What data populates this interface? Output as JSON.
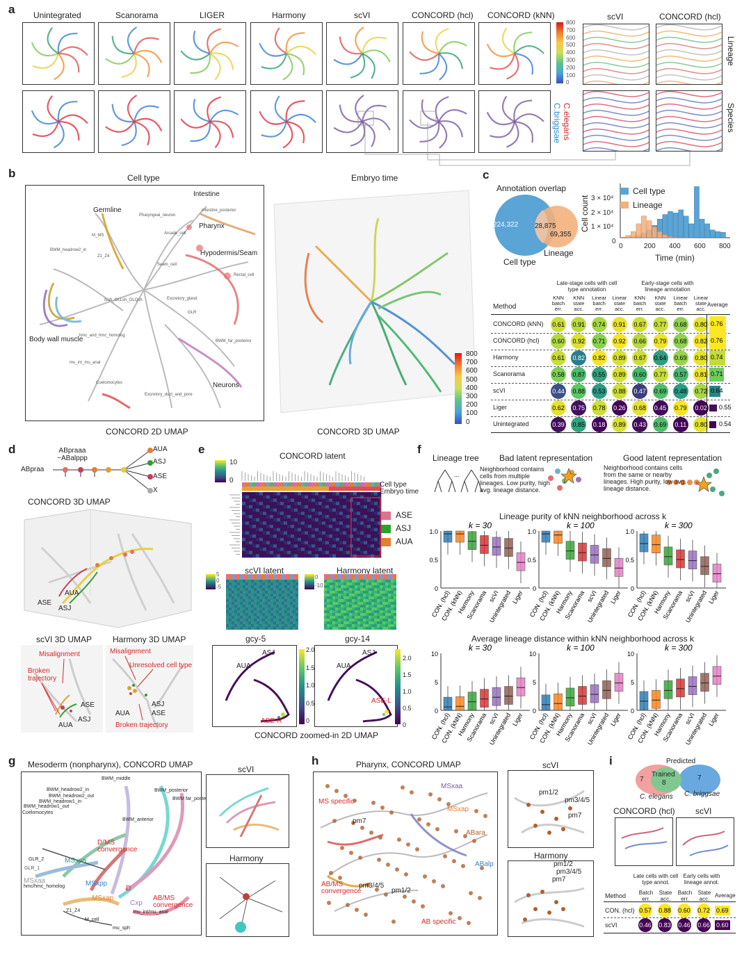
{
  "panels": [
    "a",
    "b",
    "c",
    "d",
    "e",
    "f",
    "g",
    "h",
    "i"
  ],
  "a": {
    "methods": [
      "Unintegrated",
      "Scanorama",
      "LIGER",
      "Harmony",
      "scVI",
      "CONCORD (hcl)",
      "CONCORD (kNN)"
    ],
    "colorbar_ticks": [
      "800",
      "700",
      "600",
      "500",
      "400",
      "300",
      "200",
      "100",
      "0"
    ],
    "zoom_titles": [
      "scVI",
      "CONCORD (hcl)"
    ],
    "row_labels": [
      "Lineage",
      "Species"
    ],
    "species": [
      "C.elegans",
      "C.briggsae"
    ]
  },
  "b": {
    "title_left": "Cell type",
    "title_right": "Embryo time",
    "caption_left": "CONCORD 2D UMAP",
    "caption_right": "CONCORD 3D UMAP",
    "cell_types": [
      "Intestine",
      "Germline",
      "Pharynx",
      "Hypodermis/Seam",
      "Body wall muscle",
      "Neurons"
    ],
    "tiny_labels": [
      "M_MS",
      "BWM_headrow2_in",
      "Z1_Z4",
      "Seam_cell",
      "Coelomocytes",
      "Excretory_duct_and_pore",
      "Intestine_posterior",
      "Pharyngeal_neuron",
      "hmc_and_hmc_homolog",
      "mu_int_mu_anal",
      "ILsh_OLLsh_OLQsh",
      "Excretory_gland",
      "GLR",
      "Arcade_cell",
      "BWM_far_posterior",
      "Rectal_cell"
    ],
    "colorbar_ticks": [
      "800",
      "700",
      "600",
      "500",
      "400",
      "300",
      "200",
      "100",
      "0"
    ]
  },
  "c": {
    "venn_title": "Annotation overlap",
    "venn_left_label": "Cell type",
    "venn_right_label": "Lineage",
    "venn_values": [
      "224,322",
      "28,875",
      "69,355"
    ],
    "hist_legend": [
      "Cell type",
      "Lineage"
    ],
    "hist_ylabel": "Cell count",
    "hist_xlabel": "Time (min)",
    "hist_yticks": [
      "3 × 10⁴",
      "2 × 10⁴",
      "1 × 10⁴",
      "0"
    ],
    "hist_xticks": [
      "0",
      "200",
      "400",
      "600",
      "800"
    ],
    "hist_celltype": [
      200,
      500,
      800,
      1500,
      3000,
      5000,
      8000,
      12000,
      15000,
      17000,
      16000,
      18000,
      14000,
      9000,
      33000,
      12000,
      9000,
      5000,
      4000,
      3500
    ],
    "hist_lineage": [
      300,
      1500,
      4000,
      9000,
      14000,
      11000,
      7000,
      4000,
      2000,
      800,
      400,
      200,
      100,
      50,
      0,
      0,
      0,
      0,
      0,
      0
    ],
    "table_group1": "Late-stage cells with cell type annotation",
    "table_group2": "Early-stage cells with lineage annotation",
    "table_cols": [
      "KNN batch err.",
      "KNN state acc.",
      "Linear batch err.",
      "Linear state acc.",
      "KNN batch err.",
      "KNN state acc.",
      "Linear batch err.",
      "Linear state acc."
    ],
    "method_header": "Method",
    "average_header": "Average",
    "rows": [
      {
        "method": "CONCORD (kNN)",
        "vals": [
          "0.61",
          "0.91",
          "0.74",
          "0.91",
          "0.67",
          "0.77",
          "0.68",
          "0.80"
        ],
        "avg": "0.76"
      },
      {
        "method": "CONCORD (hcl)",
        "vals": [
          "0.60",
          "0.92",
          "0.71",
          "0.92",
          "0.66",
          "0.79",
          "0.68",
          "0.82"
        ],
        "avg": "0.76"
      },
      {
        "method": "Harmony",
        "vals": [
          "0.61",
          "0.82",
          "0.82",
          "0.89",
          "0.67",
          "0.64",
          "0.69",
          "0.80"
        ],
        "avg": "0.74"
      },
      {
        "method": "Scanorama",
        "vals": [
          "0.58",
          "0.87",
          "0.55",
          "0.89",
          "0.60",
          "0.77",
          "0.57",
          "0.81"
        ],
        "avg": "0.71"
      },
      {
        "method": "scVI",
        "vals": [
          "0.44",
          "0.88",
          "0.53",
          "0.88",
          "0.47",
          "0.69",
          "0.48",
          "0.72"
        ],
        "avg": "0.64"
      },
      {
        "method": "Liger",
        "vals": [
          "0.62",
          "0.75",
          "0.78",
          "0.26",
          "0.68",
          "0.45",
          "0.79",
          "0.02"
        ],
        "avg": "0.55"
      },
      {
        "method": "Unintegrated",
        "vals": [
          "0.39",
          "0.85",
          "0.18",
          "0.89",
          "0.43",
          "0.69",
          "0.11",
          "0.80"
        ],
        "avg": "0.54"
      }
    ]
  },
  "d": {
    "lineage_root": "ABpraa",
    "lineage_sub": "ABpraaa ~ABalppp",
    "lineage_ends": [
      "AUA",
      "ASJ",
      "ASE",
      "X"
    ],
    "title_3d": "CONCORD 3D UMAP",
    "labels_3d": [
      "AUA",
      "ASE",
      "ASJ"
    ],
    "scvi_title": "scVI 3D UMAP",
    "harmony_title": "Harmony 3D UMAP",
    "scvi_notes": [
      "Misalignment",
      "Broken trajectory"
    ],
    "harmony_notes": [
      "Misalignment",
      "Unresolved cell type",
      "Broken trajectory"
    ],
    "small_labels": [
      "ASE",
      "AUA",
      "ASJ"
    ]
  },
  "e": {
    "concord_title": "CONCORD latent",
    "bar_labels": [
      "Cell type",
      "Embryo time"
    ],
    "legend": [
      "ASE",
      "ASJ",
      "AUA"
    ],
    "cbar_ticks": [
      "10",
      "0"
    ],
    "scvi_title": "scVI latent",
    "scvi_ticks": [
      "5",
      "0",
      "-5"
    ],
    "harmony_title": "Harmony latent",
    "harmony_ticks": [
      "0",
      "-10"
    ],
    "gene1": "gcy-5",
    "gene2": "gcy-14",
    "gene_ticks1": [
      "2.0",
      "1.5",
      "1.0",
      "0.5",
      "0"
    ],
    "gene_ticks2": [
      "2.0",
      "1.5",
      "1.0",
      "0.5",
      "0"
    ],
    "gene_labels": [
      "ASJ",
      "AUA",
      "ASE-R",
      "ASE-L"
    ],
    "caption": "CONCORD zoomed-in 2D UMAP"
  },
  "f": {
    "tree_title": "Lineage tree",
    "bad_title": "Bad latent representation",
    "good_title": "Good latent representation",
    "bad_text": "Neighborhood contains cells from multiple lineages. Low purity, high avg. lineage distance.",
    "good_text": "Neighborhood contains cells from the same or nearby lineages. High purity, low avg. lineage distance.",
    "purity_title": "Lineage purity of kNN neighborhood across k",
    "distance_title": "Average lineage distance within kNN neighborhood across k",
    "k_labels": [
      "k = 30",
      "k = 100",
      "k = 300"
    ],
    "methods": [
      "CON. (hcl)",
      "CON. (kNN)",
      "Harmony",
      "Scanorama",
      "scVI",
      "Unintegrated",
      "Liger"
    ],
    "colors": [
      "#1f77b4",
      "#ff7f0e",
      "#2ca02c",
      "#d62728",
      "#9467bd",
      "#8c564b",
      "#e377c2"
    ],
    "purity_yticks": [
      "1.0",
      "0.5",
      "0"
    ],
    "distance_yticks": [
      "10",
      "5",
      "0"
    ],
    "purity_medians": [
      [
        0.95,
        0.95,
        0.82,
        0.75,
        0.72,
        0.7,
        0.45
      ],
      [
        0.95,
        0.93,
        0.65,
        0.62,
        0.58,
        0.52,
        0.35
      ],
      [
        0.78,
        0.76,
        0.55,
        0.5,
        0.48,
        0.38,
        0.25
      ]
    ],
    "distance_medians": [
      [
        0.6,
        0.7,
        1.5,
        2.0,
        2.3,
        2.5,
        4.0
      ],
      [
        1.0,
        1.2,
        2.2,
        2.5,
        2.8,
        3.5,
        4.8
      ],
      [
        1.6,
        1.8,
        3.5,
        3.8,
        4.2,
        4.8,
        6.0
      ]
    ]
  },
  "g": {
    "title": "Mesoderm (nonpharynx), CONCORD UMAP",
    "scvi_title": "scVI",
    "harmony_title": "Harmony",
    "labels": [
      "BWM_middle",
      "BWM_headrow2_in",
      "BWM_headrow2_out",
      "BWM_headrow1_in",
      "BWM_headrow1_out",
      "Coelomocytes",
      "BWM_posterior",
      "BWM far_posterior",
      "BWM_anterior",
      "GLR_2",
      "GLR_1",
      "MSxpa",
      "MSxaa",
      "hmc/hmc_homolog",
      "MSxpp",
      "MSxap",
      "Z1_Z4",
      "M_cell",
      "mu_sph",
      "mu_int/mu_anal",
      "Cxp",
      "D",
      "D/MS convergence",
      "AB/MS convergence"
    ]
  },
  "h": {
    "title": "Pharynx, CONCORD UMAP",
    "scvi_title": "scVI",
    "harmony_title": "Harmony",
    "labels": [
      "MSxaa",
      "MSxap",
      "ABara",
      "ABalp",
      "MS specific",
      "pm7",
      "pm3/4/5",
      "pm1/2",
      "AB/MS convergence",
      "AB specific"
    ],
    "scvi_labels": [
      "pm1/2",
      "pm3/4/5",
      "pm7"
    ],
    "harmony_labels": [
      "pm1/2",
      "pm3/4/5",
      "pm7"
    ]
  },
  "i": {
    "predicted": "Predicted",
    "trained": "Trained",
    "left_count": "7",
    "mid_count": "8",
    "right_count": "7",
    "species_left": "C. elegans",
    "species_right": "C. briggsae",
    "umap_titles": [
      "CONCORD (hcl)",
      "scVI"
    ],
    "group1": "Late cells with cell type annot.",
    "group2": "Early cells with lineage annot.",
    "method_header": "Method",
    "cols": [
      "Batch err.",
      "State acc.",
      "Batch err.",
      "State acc."
    ],
    "average_header": "Average",
    "rows": [
      {
        "method": "CON. (hcl)",
        "vals": [
          "0.57",
          "0.88",
          "0.60",
          "0.72"
        ],
        "avg": "0.69"
      },
      {
        "method": "scVI",
        "vals": [
          "0.46",
          "0.83",
          "0.46",
          "0.66"
        ],
        "avg": "0.60"
      }
    ]
  }
}
